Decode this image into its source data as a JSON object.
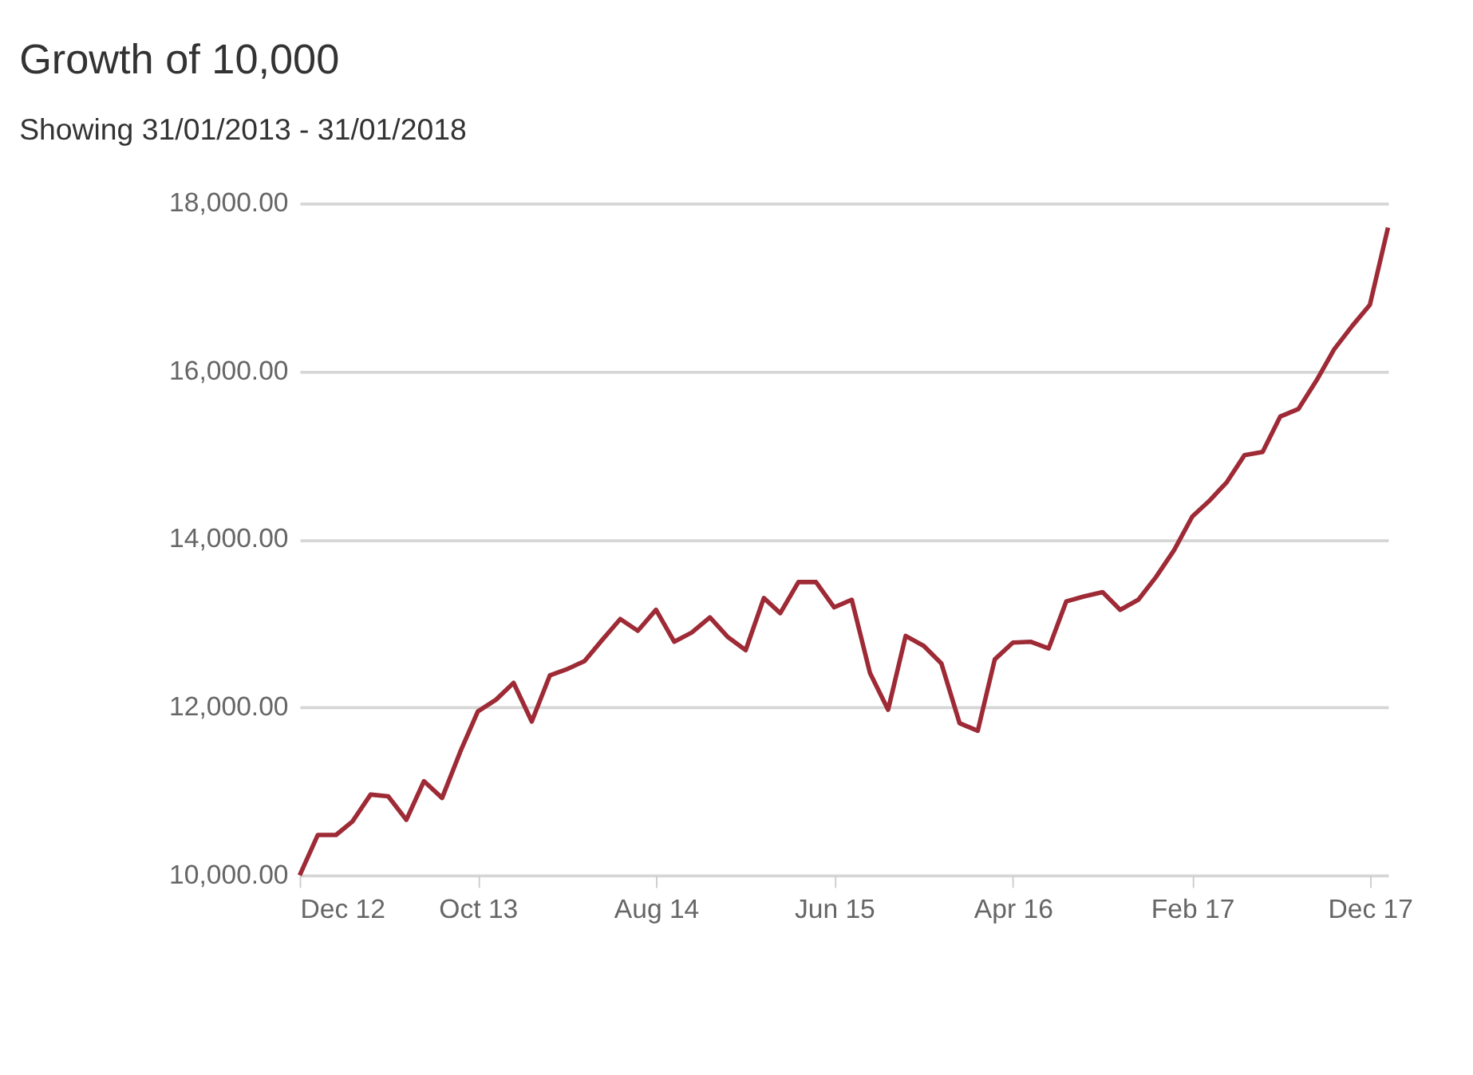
{
  "chart_data": {
    "type": "line",
    "title": "Growth of 10,000",
    "subtitle": "Showing 31/01/2013 - 31/01/2018",
    "x": [
      "2012-12",
      "2013-01",
      "2013-02",
      "2013-03",
      "2013-04",
      "2013-05",
      "2013-06",
      "2013-07",
      "2013-08",
      "2013-09",
      "2013-10",
      "2013-11",
      "2013-12",
      "2014-01",
      "2014-02",
      "2014-03",
      "2014-04",
      "2014-05",
      "2014-06",
      "2014-07",
      "2014-08",
      "2014-09",
      "2014-10",
      "2014-11",
      "2014-12",
      "2015-01",
      "2015-02",
      "2015-03",
      "2015-04",
      "2015-05",
      "2015-06",
      "2015-07",
      "2015-08",
      "2015-09",
      "2015-10",
      "2015-11",
      "2015-12",
      "2016-01",
      "2016-02",
      "2016-03",
      "2016-04",
      "2016-05",
      "2016-06",
      "2016-07",
      "2016-08",
      "2016-09",
      "2016-10",
      "2016-11",
      "2016-12",
      "2017-01",
      "2017-02",
      "2017-03",
      "2017-04",
      "2017-05",
      "2017-06",
      "2017-07",
      "2017-08",
      "2017-09",
      "2017-10",
      "2017-11",
      "2017-12",
      "2018-01"
    ],
    "series": [
      {
        "color": "#9e2a36",
        "values": [
          10000,
          10480,
          10480,
          10640,
          10960,
          10940,
          10660,
          11120,
          10920,
          11470,
          11950,
          12090,
          12290,
          11830,
          12380,
          12450,
          12550,
          12800,
          13050,
          12910,
          13160,
          12780,
          12890,
          13070,
          12840,
          12680,
          13300,
          13120,
          13490,
          13490,
          13190,
          13280,
          12410,
          11970,
          12850,
          12730,
          12520,
          11810,
          11720,
          12570,
          12770,
          12780,
          12700,
          13260,
          13320,
          13370,
          13160,
          13280,
          13550,
          13870,
          14270,
          14450,
          14680,
          15000,
          15040,
          15460,
          15550,
          15890,
          16260,
          16540,
          16790,
          17710
        ]
      }
    ],
    "xlim": [
      "2012-12",
      "2018-01"
    ],
    "xticks": [
      {
        "value": "2012-12",
        "label": "Dec 12"
      },
      {
        "value": "2013-10",
        "label": "Oct 13"
      },
      {
        "value": "2014-08",
        "label": "Aug 14"
      },
      {
        "value": "2015-06",
        "label": "Jun 15"
      },
      {
        "value": "2016-04",
        "label": "Apr 16"
      },
      {
        "value": "2017-02",
        "label": "Feb 17"
      },
      {
        "value": "2017-12",
        "label": "Dec 17"
      }
    ],
    "ylim": [
      10000,
      18000
    ],
    "yticks": [
      {
        "value": 10000,
        "label": "10,000.00"
      },
      {
        "value": 12000,
        "label": "12,000.00"
      },
      {
        "value": 14000,
        "label": "14,000.00"
      },
      {
        "value": 16000,
        "label": "16,000.00"
      },
      {
        "value": 18000,
        "label": "18,000.00"
      }
    ],
    "grid": "y",
    "marker": "none",
    "line_style": "solid",
    "legend": false
  }
}
